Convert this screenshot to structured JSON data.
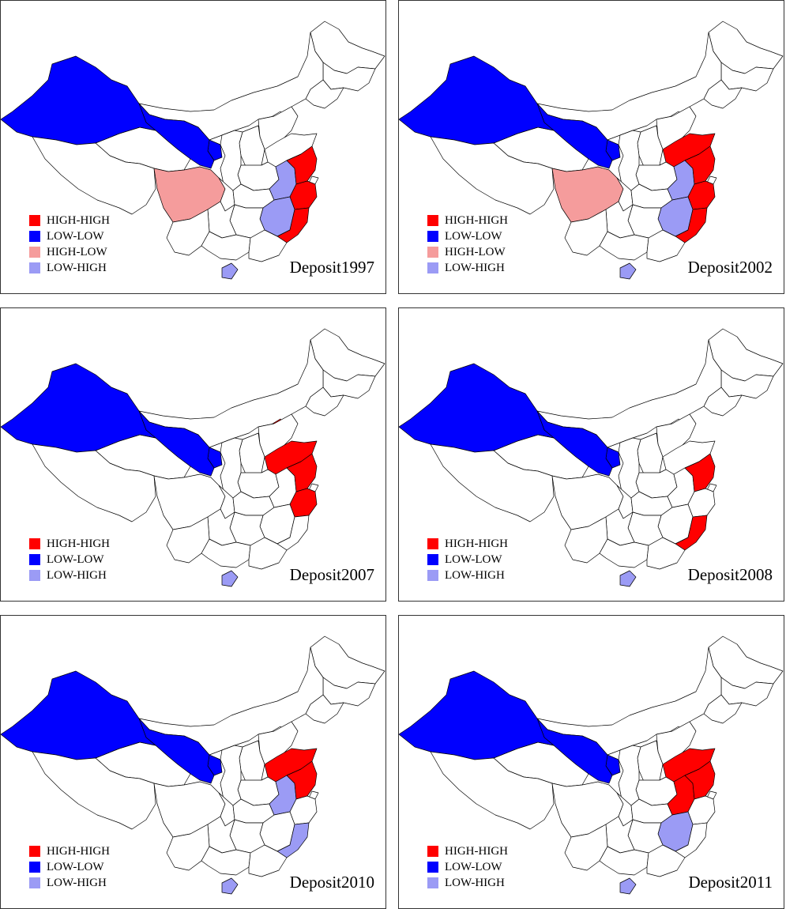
{
  "colors": {
    "HIGH-HIGH": "#ff0000",
    "LOW-LOW": "#0000ff",
    "HIGH-LOW": "#f59c9c",
    "LOW-HIGH": "#9b9bf5",
    "none": "#ffffff",
    "border": "#000000"
  },
  "panels": [
    {
      "title": "Deposit1997",
      "legend": [
        "HIGH-HIGH",
        "LOW-LOW",
        "HIGH-LOW",
        "LOW-HIGH"
      ],
      "regions": {
        "xinjiang": "LOW-LOW",
        "gansu": "LOW-LOW",
        "ningxia": "LOW-LOW",
        "sichuan": "HIGH-LOW",
        "jiangsu": "HIGH-HIGH",
        "zhejiang": "HIGH-HIGH",
        "fujian": "HIGH-HIGH",
        "anhui": "LOW-HIGH",
        "jiangxi": "LOW-HIGH",
        "hainan": "LOW-HIGH"
      }
    },
    {
      "title": "Deposit2002",
      "legend": [
        "HIGH-HIGH",
        "LOW-LOW",
        "HIGH-LOW",
        "LOW-HIGH"
      ],
      "regions": {
        "xinjiang": "LOW-LOW",
        "gansu": "LOW-LOW",
        "ningxia": "LOW-LOW",
        "sichuan": "HIGH-LOW",
        "shandong": "HIGH-HIGH",
        "jiangsu": "HIGH-HIGH",
        "zhejiang": "HIGH-HIGH",
        "fujian": "HIGH-HIGH",
        "anhui": "LOW-HIGH",
        "jiangxi": "LOW-HIGH",
        "hainan": "LOW-HIGH"
      }
    },
    {
      "title": "Deposit2007",
      "legend": [
        "HIGH-HIGH",
        "LOW-LOW",
        "LOW-HIGH"
      ],
      "regions": {
        "xinjiang": "LOW-LOW",
        "gansu": "LOW-LOW",
        "ningxia": "LOW-LOW",
        "beijing": "HIGH-HIGH",
        "shandong": "HIGH-HIGH",
        "jiangsu": "HIGH-HIGH",
        "zhejiang": "HIGH-HIGH",
        "hainan": "LOW-HIGH"
      }
    },
    {
      "title": "Deposit2008",
      "legend": [
        "HIGH-HIGH",
        "LOW-LOW",
        "LOW-HIGH"
      ],
      "regions": {
        "xinjiang": "LOW-LOW",
        "gansu": "LOW-LOW",
        "ningxia": "LOW-LOW",
        "jiangsu": "HIGH-HIGH",
        "fujian": "HIGH-HIGH",
        "hainan": "LOW-HIGH"
      }
    },
    {
      "title": "Deposit2010",
      "legend": [
        "HIGH-HIGH",
        "LOW-LOW",
        "LOW-HIGH"
      ],
      "regions": {
        "xinjiang": "LOW-LOW",
        "gansu": "LOW-LOW",
        "ningxia": "LOW-LOW",
        "shandong": "HIGH-HIGH",
        "jiangsu": "HIGH-HIGH",
        "anhui": "LOW-HIGH",
        "fujian": "LOW-HIGH",
        "hainan": "LOW-HIGH"
      }
    },
    {
      "title": "Deposit2011",
      "legend": [
        "HIGH-HIGH",
        "LOW-LOW",
        "LOW-HIGH"
      ],
      "regions": {
        "xinjiang": "LOW-LOW",
        "gansu": "LOW-LOW",
        "ningxia": "LOW-LOW",
        "shandong": "HIGH-HIGH",
        "jiangsu": "HIGH-HIGH",
        "anhui": "HIGH-HIGH",
        "jiangxi": "LOW-HIGH",
        "hainan": "LOW-HIGH"
      }
    }
  ]
}
